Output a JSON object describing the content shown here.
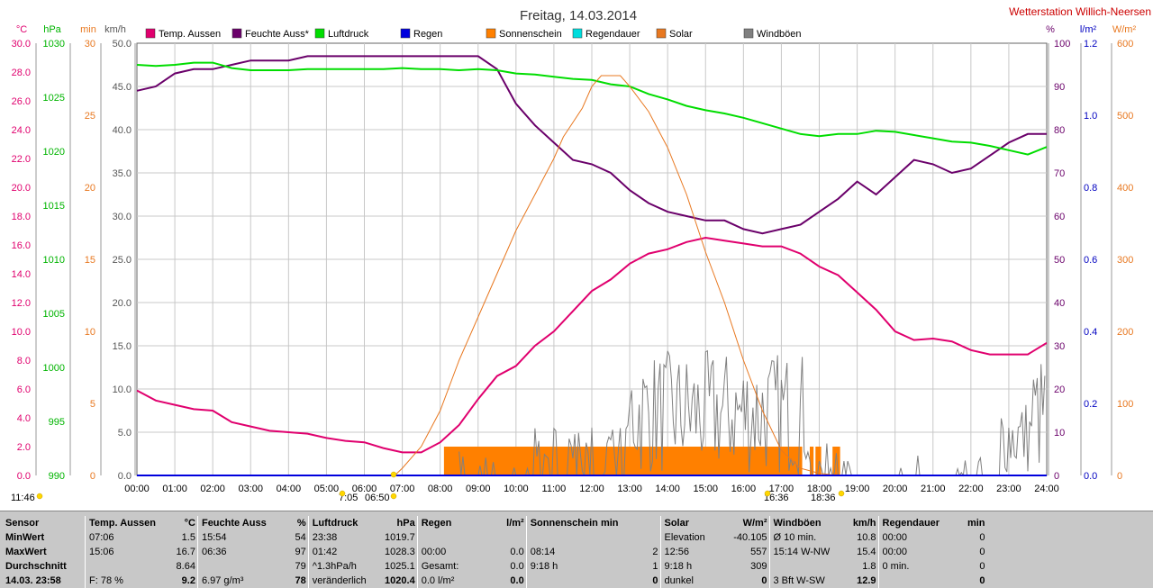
{
  "chart_data": {
    "type": "line",
    "title": "Freitag, 14.03.2014",
    "station": "Wetterstation Willich-Neersen",
    "x_ticks": [
      "00:00",
      "01:00",
      "02:00",
      "03:00",
      "04:00",
      "05:00",
      "06:00",
      "07:00",
      "08:00",
      "09:00",
      "10:00",
      "11:00",
      "12:00",
      "13:00",
      "14:00",
      "15:00",
      "16:00",
      "17:00",
      "18:00",
      "19:00",
      "20:00",
      "21:00",
      "22:00",
      "23:00",
      "24:00"
    ],
    "axes": [
      {
        "unit": "°C",
        "ticks": [
          "30.0",
          "28.0",
          "26.0",
          "24.0",
          "22.0",
          "20.0",
          "18.0",
          "16.0",
          "14.0",
          "12.0",
          "10.0",
          "8.0",
          "6.0",
          "4.0",
          "2.0",
          "0.0"
        ],
        "color": "#e0006e",
        "ylim": [
          0,
          30
        ]
      },
      {
        "unit": "hPa",
        "ticks": [
          "1030",
          "1025",
          "1020",
          "1015",
          "1010",
          "1005",
          "1000",
          "995",
          "990"
        ],
        "color": "#00b400",
        "ylim": [
          990,
          1030
        ]
      },
      {
        "unit": "min",
        "ticks": [
          "30",
          "25",
          "20",
          "15",
          "10",
          "5",
          "0"
        ],
        "color": "#e87820",
        "ylim": [
          0,
          30
        ]
      },
      {
        "unit": "km/h",
        "ticks": [
          "50.0",
          "45.0",
          "40.0",
          "35.0",
          "30.0",
          "25.0",
          "20.0",
          "15.0",
          "10.0",
          "5.0",
          "0.0"
        ],
        "color": "#555555",
        "ylim": [
          0,
          50
        ]
      },
      {
        "unit": "%",
        "ticks": [
          "100",
          "90",
          "80",
          "70",
          "60",
          "50",
          "40",
          "30",
          "20",
          "10",
          "0"
        ],
        "color": "#6a006a",
        "ylim": [
          0,
          100
        ]
      },
      {
        "unit": "l/m²",
        "ticks": [
          "1.2",
          "1.0",
          "0.8",
          "0.6",
          "0.4",
          "0.2",
          "0.0"
        ],
        "color": "#0000c0",
        "ylim": [
          0,
          1.2
        ]
      },
      {
        "unit": "W/m²",
        "ticks": [
          "600",
          "500",
          "400",
          "300",
          "200",
          "100",
          "0"
        ],
        "color": "#e87820",
        "ylim": [
          0,
          600
        ]
      }
    ],
    "legend": [
      {
        "label": "Temp. Aussen",
        "color": "#e0006e"
      },
      {
        "label": "Feuchte Auss*",
        "color": "#6a006a"
      },
      {
        "label": "Luftdruck",
        "color": "#00dd00"
      },
      {
        "label": "Regen",
        "color": "#0000dd"
      },
      {
        "label": "Sonnenschein",
        "color": "#ff8000"
      },
      {
        "label": "Regendauer",
        "color": "#00dddd"
      },
      {
        "label": "Solar",
        "color": "#e87820"
      },
      {
        "label": "Windböen",
        "color": "#808080"
      }
    ],
    "series": [
      {
        "name": "Temp. Aussen",
        "color": "#e0006e",
        "axis": 0,
        "x": [
          0,
          0.5,
          1,
          1.5,
          2,
          2.5,
          3,
          3.5,
          4,
          4.5,
          5,
          5.5,
          6,
          6.5,
          7,
          7.5,
          8,
          8.5,
          9,
          9.5,
          10,
          10.5,
          11,
          11.5,
          12,
          12.5,
          13,
          13.5,
          14,
          14.5,
          15,
          15.5,
          16,
          16.5,
          17,
          17.5,
          18,
          18.5,
          19,
          19.5,
          20,
          20.5,
          21,
          21.5,
          22,
          22.5,
          23,
          23.5,
          24
        ],
        "y": [
          5.9,
          5.2,
          4.9,
          4.6,
          4.5,
          3.7,
          3.4,
          3.1,
          3.0,
          2.9,
          2.6,
          2.4,
          2.3,
          1.9,
          1.6,
          1.6,
          2.3,
          3.5,
          5.3,
          6.9,
          7.6,
          9.0,
          10.0,
          11.4,
          12.8,
          13.6,
          14.7,
          15.4,
          15.7,
          16.2,
          16.5,
          16.3,
          16.1,
          15.9,
          15.9,
          15.4,
          14.5,
          13.9,
          12.7,
          11.5,
          10.0,
          9.4,
          9.5,
          9.3,
          8.7,
          8.4,
          8.4,
          8.4,
          9.2
        ]
      },
      {
        "name": "Feuchte Auss*",
        "color": "#6a006a",
        "axis": 4,
        "x": [
          0,
          0.5,
          1,
          1.5,
          2,
          2.5,
          3,
          3.5,
          4,
          4.5,
          5,
          5.5,
          6,
          6.5,
          7,
          7.5,
          8,
          8.5,
          9,
          9.5,
          10,
          10.5,
          11,
          11.5,
          12,
          12.5,
          13,
          13.5,
          14,
          14.5,
          15,
          15.5,
          16,
          16.5,
          17,
          17.5,
          18,
          18.5,
          19,
          19.5,
          20,
          20.5,
          21,
          21.5,
          22,
          22.5,
          23,
          23.5,
          24
        ],
        "y": [
          89,
          90,
          93,
          94,
          94,
          95,
          96,
          96,
          96,
          97,
          97,
          97,
          97,
          97,
          97,
          97,
          97,
          97,
          97,
          94,
          86,
          81,
          77,
          73,
          72,
          70,
          66,
          63,
          61,
          60,
          59,
          59,
          57,
          56,
          57,
          58,
          61,
          64,
          68,
          65,
          69,
          73,
          72,
          70,
          71,
          74,
          77,
          79,
          79
        ]
      },
      {
        "name": "Luftdruck",
        "color": "#00dd00",
        "axis": 1,
        "x": [
          0,
          0.5,
          1,
          1.5,
          2,
          2.5,
          3,
          3.5,
          4,
          4.5,
          5,
          5.5,
          6,
          6.5,
          7,
          7.5,
          8,
          8.5,
          9,
          9.5,
          10,
          10.5,
          11,
          11.5,
          12,
          12.5,
          13,
          13.5,
          14,
          14.5,
          15,
          15.5,
          16,
          16.5,
          17,
          17.5,
          18,
          18.5,
          19,
          19.5,
          20,
          20.5,
          21,
          21.5,
          22,
          22.5,
          23,
          23.5,
          24
        ],
        "y": [
          1028.0,
          1027.9,
          1028.0,
          1028.2,
          1028.2,
          1027.7,
          1027.5,
          1027.5,
          1027.5,
          1027.6,
          1027.6,
          1027.6,
          1027.6,
          1027.6,
          1027.7,
          1027.6,
          1027.6,
          1027.5,
          1027.6,
          1027.5,
          1027.2,
          1027.1,
          1026.9,
          1026.7,
          1026.6,
          1026.2,
          1026.0,
          1025.3,
          1024.8,
          1024.2,
          1023.8,
          1023.5,
          1023.1,
          1022.6,
          1022.1,
          1021.6,
          1021.4,
          1021.6,
          1021.6,
          1021.9,
          1021.8,
          1021.5,
          1021.2,
          1020.9,
          1020.8,
          1020.5,
          1020.1,
          1019.7,
          1020.4
        ]
      },
      {
        "name": "Solar",
        "color": "#e87820",
        "axis": 6,
        "x": [
          6.8,
          7,
          7.5,
          8,
          8.5,
          9,
          9.5,
          10,
          10.5,
          11,
          11.25,
          11.5,
          11.75,
          12,
          12.25,
          12.5,
          12.75,
          13,
          13.5,
          14,
          14.5,
          15,
          15.5,
          16,
          16.5,
          17,
          17.5,
          18,
          18.5,
          18.75
        ],
        "y": [
          0,
          10,
          40,
          90,
          160,
          220,
          280,
          340,
          390,
          440,
          470,
          490,
          510,
          540,
          555,
          555,
          555,
          540,
          505,
          455,
          390,
          310,
          240,
          160,
          90,
          35,
          10,
          3,
          0,
          0
        ]
      },
      {
        "name": "Regen",
        "color": "#0000dd",
        "axis": 5,
        "x": [
          0,
          24
        ],
        "y": [
          0,
          0
        ]
      }
    ],
    "sunshine_blocks": [
      [
        8.1,
        17.55
      ],
      [
        17.75,
        17.85
      ],
      [
        17.9,
        18.05
      ],
      [
        18.35,
        18.55
      ]
    ],
    "markers": [
      {
        "time": "11:46",
        "pos": "left"
      },
      {
        "time": "7:05",
        "pos": "sunrise"
      },
      {
        "time": "06:50",
        "pos": "dawn"
      },
      {
        "time": "16:36",
        "pos": "sunset-marker"
      },
      {
        "time": "18:36",
        "pos": "sunset"
      }
    ]
  },
  "table": {
    "headers": [
      [
        "Sensor",
        ""
      ],
      [
        "Temp. Aussen",
        "°C"
      ],
      [
        "Feuchte Auss",
        "%"
      ],
      [
        "Luftdruck",
        "hPa"
      ],
      [
        "Regen",
        "l/m²"
      ],
      [
        "Sonnenschein min",
        ""
      ],
      [
        "Solar",
        "W/m²"
      ],
      [
        "Windböen",
        "km/h"
      ],
      [
        "Regendauer",
        "min"
      ]
    ],
    "rows": [
      {
        "label": "MinWert",
        "cells": [
          [
            "07:06",
            "1.5"
          ],
          [
            "15:54",
            "54"
          ],
          [
            "23:38",
            "1019.7"
          ],
          [
            "",
            ""
          ],
          [
            "",
            ""
          ],
          [
            "Elevation",
            "-40.105"
          ],
          [
            "Ø 10 min.",
            "10.8"
          ],
          [
            "00:00",
            "0"
          ]
        ]
      },
      {
        "label": "MaxWert",
        "cells": [
          [
            "15:06",
            "16.7"
          ],
          [
            "06:36",
            "97"
          ],
          [
            "01:42",
            "1028.3"
          ],
          [
            "00:00",
            "0.0"
          ],
          [
            "08:14",
            "2"
          ],
          [
            "12:56",
            "557"
          ],
          [
            "15:14  W-NW",
            "15.4"
          ],
          [
            "00:00",
            "0"
          ]
        ]
      },
      {
        "label": "Durchschnitt",
        "cells": [
          [
            "",
            "8.64"
          ],
          [
            "",
            "79"
          ],
          [
            "^1.3hPa/h",
            "1025.1"
          ],
          [
            "Gesamt:",
            "0.0"
          ],
          [
            "9:18 h",
            "1"
          ],
          [
            "9:18 h",
            "309"
          ],
          [
            "",
            "1.8"
          ],
          [
            "0 min.",
            "0"
          ]
        ]
      },
      {
        "label": "14.03.  23:58",
        "cells": [
          [
            "F: 78 %",
            "9.2"
          ],
          [
            "6.97 g/m³",
            "78"
          ],
          [
            "veränderlich",
            "1020.4"
          ],
          [
            "0.0 l/m²",
            "0.0"
          ],
          [
            "",
            "0"
          ],
          [
            "dunkel",
            "0"
          ],
          [
            "3 Bft W-SW",
            "12.9"
          ],
          [
            "",
            "0"
          ]
        ]
      }
    ]
  }
}
